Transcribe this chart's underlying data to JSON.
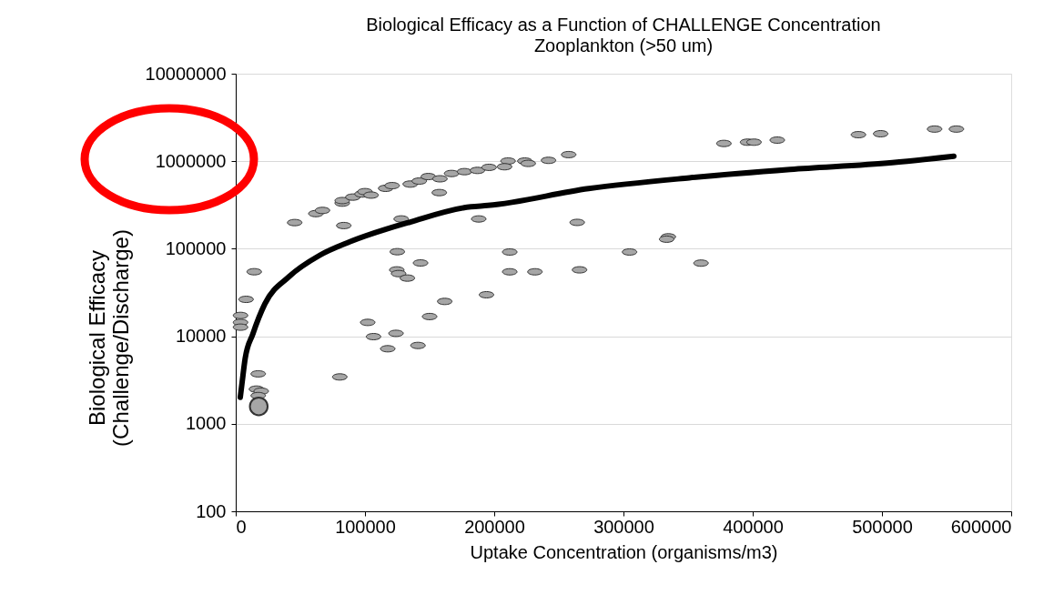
{
  "chart_data": {
    "type": "scatter",
    "title": "Biological Efficacy as a Function of CHALLENGE Concentration",
    "subtitle": "Zooplankton (>50 um)",
    "xlabel": "Uptake Concentration (organisms/m3)",
    "ylabel": "Biological Efficacy\n(Challenge/Discharge)",
    "log": "y",
    "grid": "y",
    "xlim": [
      0,
      600000
    ],
    "xticks": [
      0,
      100000,
      200000,
      300000,
      400000,
      500000,
      600000
    ],
    "ylim": [
      100,
      10000000
    ],
    "yticks": [
      100,
      1000,
      10000,
      100000,
      1000000,
      10000000
    ],
    "series": [
      {
        "type": "scatter",
        "marker": "circle",
        "color": "#a6a6a6",
        "x": [
          45600,
          83600,
          62000,
          67100,
          82400,
          82400,
          90600,
          97700,
          100000,
          104700,
          116000,
          121000,
          135000,
          142000,
          149000,
          158000,
          167000,
          177000,
          187000,
          196000,
          157500,
          128000,
          188000,
          125000,
          143000,
          124600,
          126000,
          132800,
          14300,
          257600,
          210700,
          223700,
          226300,
          242000,
          208000,
          377700,
          396000,
          401000,
          419000,
          481800,
          499000,
          540700,
          557600,
          264200,
          334700,
          333400,
          212000,
          304700,
          212000,
          231500,
          266000,
          360000,
          8000,
          3700,
          3700,
          3700,
          102100,
          194000,
          161700,
          150000,
          106600,
          124000,
          117600,
          141000,
          80500,
          17400,
          16000,
          19700,
          17400
        ],
        "values": [
          199000,
          184000,
          252000,
          274000,
          332000,
          355000,
          389000,
          422000,
          449000,
          410000,
          490000,
          526000,
          548000,
          593000,
          668000,
          630000,
          724000,
          760000,
          785000,
          851000,
          438000,
          219000,
          219000,
          92500,
          68800,
          57300,
          52000,
          46200,
          54600,
          1190000,
          1005000,
          1005000,
          944000,
          1023000,
          865000,
          1596000,
          1650000,
          1650000,
          1743000,
          2010000,
          2060000,
          2330000,
          2330000,
          200000,
          136800,
          128600,
          91800,
          91800,
          54500,
          54500,
          57400,
          68500,
          26400,
          17300,
          14400,
          12700,
          14400,
          29800,
          25000,
          16800,
          9900,
          10800,
          7200,
          7850,
          3430,
          3720,
          2490,
          2360,
          2100
        ]
      },
      {
        "type": "scatter",
        "marker": "circle",
        "color": "#a6a6a6",
        "x": [
          17800
        ],
        "values": [
          1580
        ]
      },
      {
        "type": "line",
        "color": "#000000",
        "x": [
          3500,
          4900,
          7300,
          13200,
          22500,
          41300,
          64800,
          88200,
          135000,
          182000,
          195000,
          273000,
          351000,
          429000,
          508000,
          555600
        ],
        "values": [
          2000,
          2940,
          5570,
          10600,
          23400,
          48100,
          83900,
          120000,
          202000,
          302000,
          312000,
          486000,
          646000,
          806000,
          962000,
          1140000
        ]
      }
    ]
  }
}
